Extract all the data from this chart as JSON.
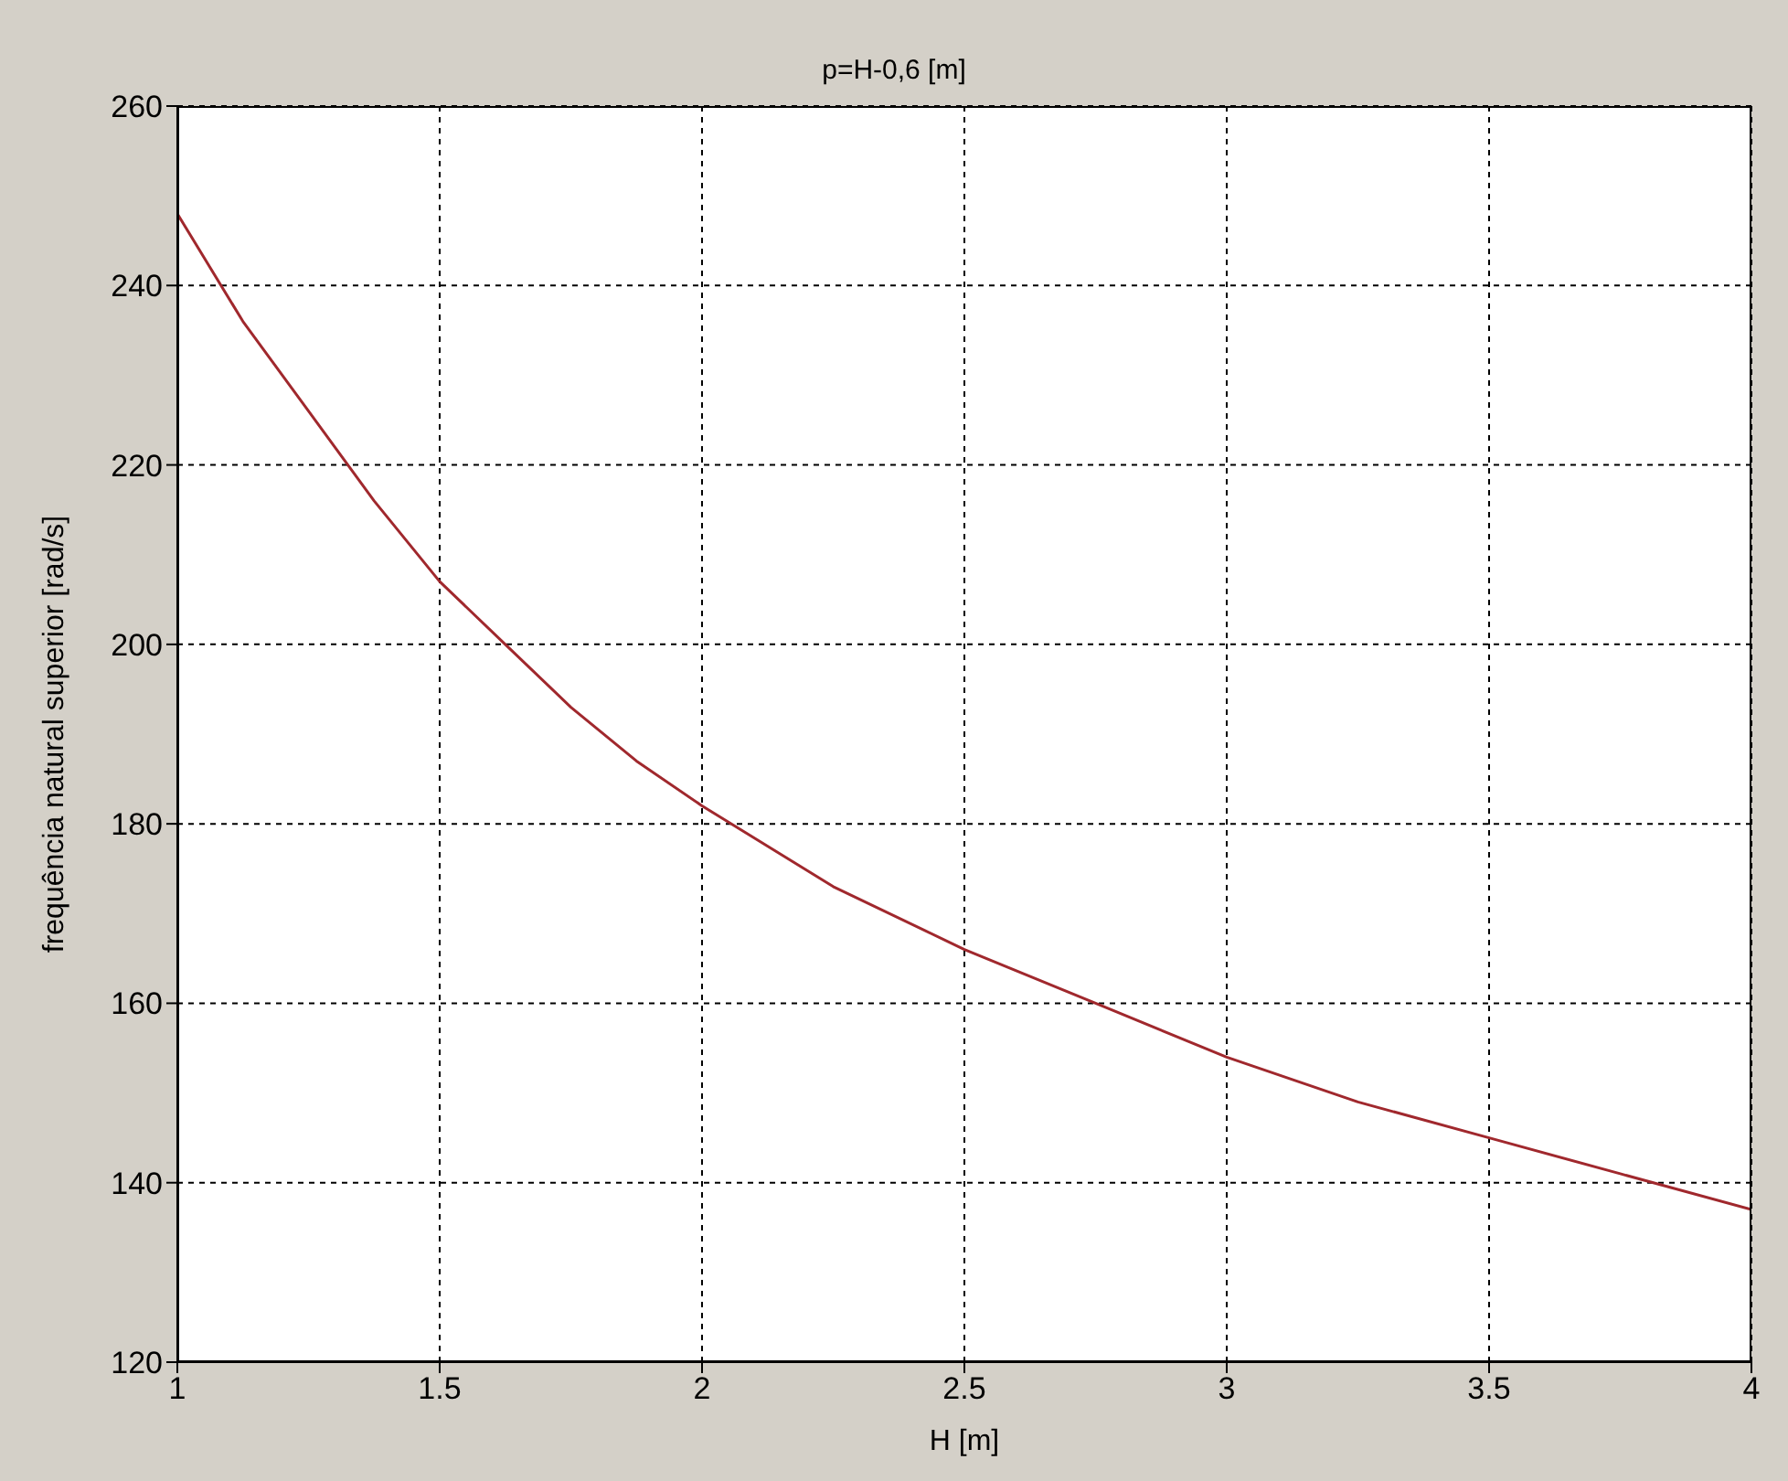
{
  "chart_data": {
    "type": "line",
    "title": "p=H-0,6 [m]",
    "xlabel": "H [m]",
    "ylabel": "frequência natural superior [rad/s]",
    "x": [
      1,
      1.125,
      1.25,
      1.375,
      1.5,
      1.625,
      1.75,
      1.875,
      2,
      2.25,
      2.5,
      2.75,
      3,
      3.25,
      3.5,
      3.75,
      4
    ],
    "series": [
      {
        "color": "#a0282d",
        "values": [
          248,
          236,
          226,
          216,
          207,
          200,
          193,
          187,
          182,
          173,
          166,
          160,
          154,
          149,
          145,
          141,
          137
        ]
      }
    ],
    "xlim": [
      1,
      4
    ],
    "xticks": [
      1,
      1.5,
      2,
      2.5,
      3,
      3.5,
      4
    ],
    "ylim": [
      120,
      260
    ],
    "yticks": [
      120,
      140,
      160,
      180,
      200,
      220,
      240,
      260
    ],
    "grid": true,
    "line_style": "solid",
    "marker": "none"
  }
}
